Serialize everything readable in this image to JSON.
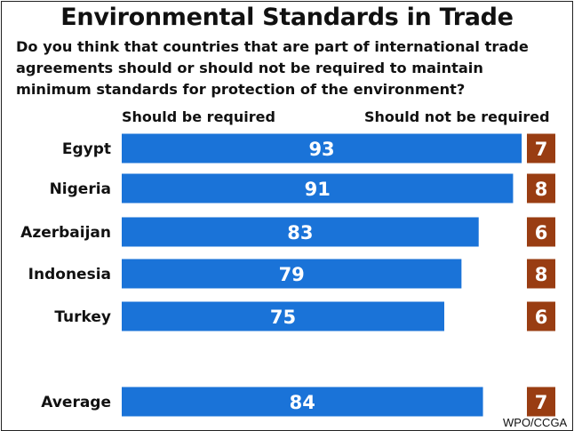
{
  "title": "Environmental Standards in Trade",
  "question": "Do you think that countries that are part of international trade agreements should or should not be required to maintain minimum standards for protection of the environment?",
  "source": "WPO/CCGA",
  "colors": {
    "required": "#1a73d8",
    "not_required": "#993d12",
    "bar_label": "#ffffff",
    "text": "#111111"
  },
  "chart_data": {
    "type": "bar",
    "orientation": "horizontal",
    "title": "Environmental Standards in Trade",
    "categories": [
      "Egypt",
      "Nigeria",
      "Azerbaijan",
      "Indonesia",
      "Turkey",
      "Average"
    ],
    "series": [
      {
        "name": "Should be required",
        "values": [
          93,
          91,
          83,
          79,
          75,
          84
        ]
      },
      {
        "name": "Should not be required",
        "values": [
          7,
          8,
          6,
          8,
          6,
          7
        ]
      }
    ],
    "xlim": [
      0,
      100
    ],
    "grid": false,
    "legend": "top"
  }
}
